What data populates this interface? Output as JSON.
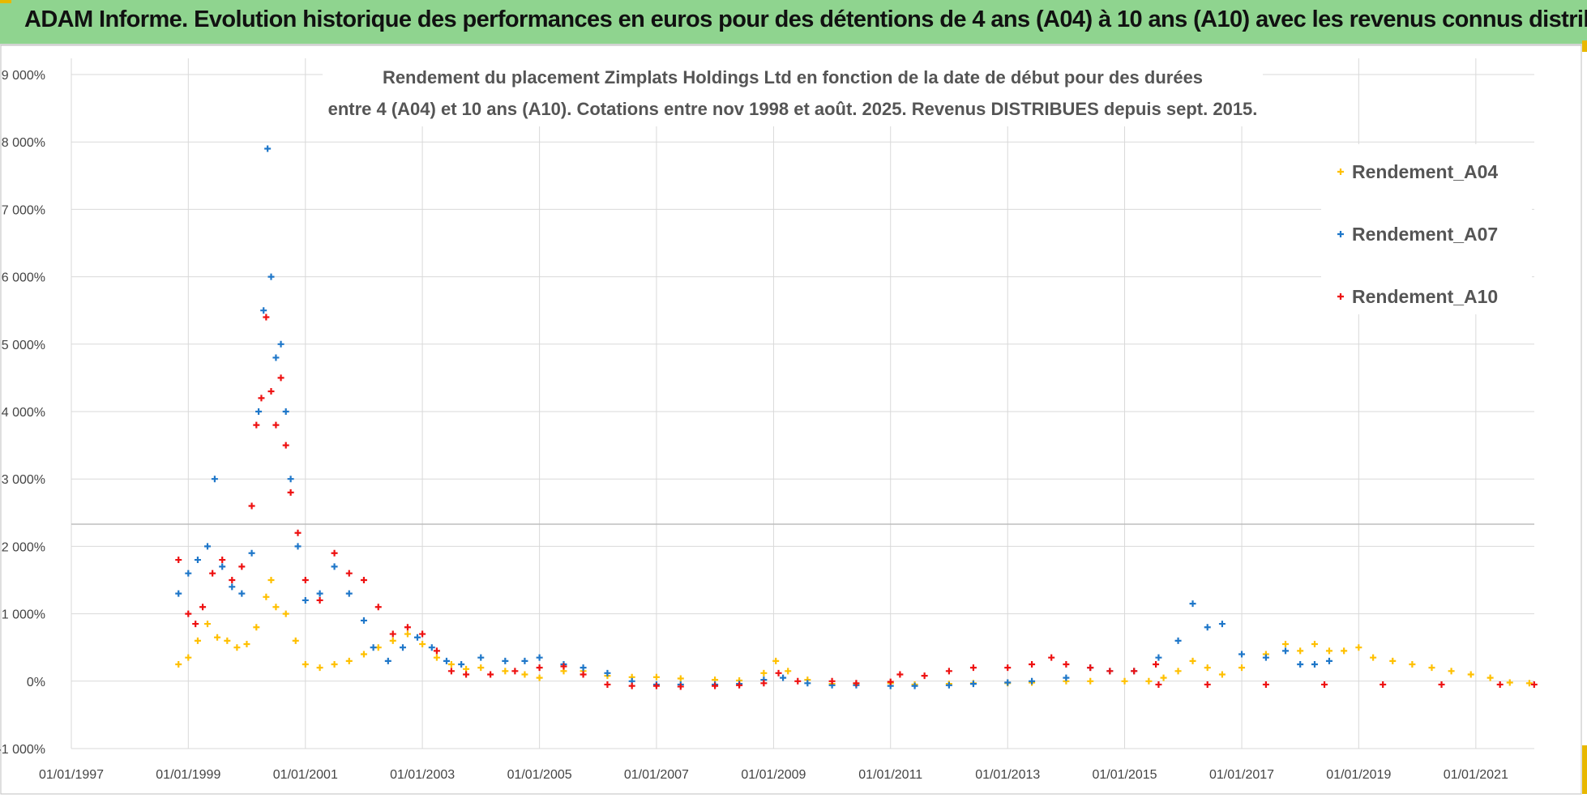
{
  "banner": {
    "title": "ADAM Informe. Evolution historique des performances en euros pour des détentions de 4 ans (A04) à 10 ans (A10) avec les revenus connus distribués"
  },
  "colors": {
    "banner_bg": "#8fd48f",
    "A04": "#ffc000",
    "A07": "#1f77c9",
    "A10": "#ee1111",
    "grid": "#d9d9d9",
    "accent_corner": "#e8b800"
  },
  "chart_data": {
    "type": "scatter",
    "title_line1": "Rendement du placement Zimplats Holdings Ltd en fonction de la date de début pour des durées",
    "title_line2": "entre 4 (A04) et 10 ans (A10).  Cotations entre nov 1998 et août. 2025. Revenus DISTRIBUES depuis sept. 2015.",
    "ylim": [
      -1000,
      9000
    ],
    "yticks": [
      -1000,
      0,
      1000,
      2000,
      3000,
      4000,
      5000,
      6000,
      7000,
      8000,
      9000
    ],
    "ytick_labels": [
      "-1 000%",
      "0%",
      "1 000%",
      "2 000%",
      "3 000%",
      "4 000%",
      "5 000%",
      "6 000%",
      "7 000%",
      "8 000%",
      "9 000%"
    ],
    "xlim": [
      "1997-01-01",
      "2022-01-01"
    ],
    "xtick_labels": [
      "01/01/1997",
      "01/01/1999",
      "01/01/2001",
      "01/01/2003",
      "01/01/2005",
      "01/01/2007",
      "01/01/2009",
      "01/01/2011",
      "01/01/2013",
      "01/01/2015",
      "01/01/2017",
      "01/01/2019",
      "01/01/2021"
    ],
    "xticks": [
      "1997-01-01",
      "1999-01-01",
      "2001-01-01",
      "2003-01-01",
      "2005-01-01",
      "2007-01-01",
      "2009-01-01",
      "2011-01-01",
      "2013-01-01",
      "2015-01-01",
      "2017-01-01",
      "2019-01-01",
      "2021-01-01"
    ],
    "grid": true,
    "legend_position": "top-right",
    "series": [
      {
        "name": "Rendement_A04",
        "color": "#ffc000",
        "points": [
          [
            "1998-11-01",
            250
          ],
          [
            "1999-01-01",
            350
          ],
          [
            "1999-03-01",
            600
          ],
          [
            "1999-05-01",
            850
          ],
          [
            "1999-07-01",
            650
          ],
          [
            "1999-09-01",
            600
          ],
          [
            "1999-11-01",
            500
          ],
          [
            "2000-01-01",
            550
          ],
          [
            "2000-03-01",
            800
          ],
          [
            "2000-05-01",
            1250
          ],
          [
            "2000-06-01",
            1500
          ],
          [
            "2000-07-01",
            1100
          ],
          [
            "2000-09-01",
            1000
          ],
          [
            "2000-11-01",
            600
          ],
          [
            "2001-01-01",
            250
          ],
          [
            "2001-04-01",
            200
          ],
          [
            "2001-07-01",
            250
          ],
          [
            "2001-10-01",
            300
          ],
          [
            "2002-01-01",
            400
          ],
          [
            "2002-04-01",
            500
          ],
          [
            "2002-07-01",
            600
          ],
          [
            "2002-10-01",
            700
          ],
          [
            "2003-01-01",
            550
          ],
          [
            "2003-04-01",
            350
          ],
          [
            "2003-07-01",
            250
          ],
          [
            "2003-10-01",
            180
          ],
          [
            "2004-01-01",
            200
          ],
          [
            "2004-06-01",
            150
          ],
          [
            "2004-10-01",
            100
          ],
          [
            "2005-01-01",
            50
          ],
          [
            "2005-06-01",
            150
          ],
          [
            "2005-10-01",
            150
          ],
          [
            "2006-03-01",
            80
          ],
          [
            "2006-08-01",
            60
          ],
          [
            "2007-01-01",
            60
          ],
          [
            "2007-06-01",
            40
          ],
          [
            "2008-01-01",
            20
          ],
          [
            "2008-06-01",
            10
          ],
          [
            "2008-11-01",
            120
          ],
          [
            "2009-01-15",
            300
          ],
          [
            "2009-04-01",
            150
          ],
          [
            "2009-08-01",
            20
          ],
          [
            "2010-01-01",
            -40
          ],
          [
            "2010-06-01",
            -40
          ],
          [
            "2011-01-01",
            -30
          ],
          [
            "2011-06-01",
            -50
          ],
          [
            "2012-01-01",
            -40
          ],
          [
            "2012-06-01",
            -30
          ],
          [
            "2013-01-01",
            -30
          ],
          [
            "2013-06-01",
            -20
          ],
          [
            "2014-01-01",
            0
          ],
          [
            "2014-06-01",
            0
          ],
          [
            "2015-01-01",
            0
          ],
          [
            "2015-06-01",
            0
          ],
          [
            "2015-09-01",
            50
          ],
          [
            "2015-12-01",
            150
          ],
          [
            "2016-03-01",
            300
          ],
          [
            "2016-06-01",
            200
          ],
          [
            "2016-09-01",
            100
          ],
          [
            "2017-01-01",
            200
          ],
          [
            "2017-06-01",
            400
          ],
          [
            "2017-10-01",
            550
          ],
          [
            "2018-01-01",
            450
          ],
          [
            "2018-04-01",
            550
          ],
          [
            "2018-07-01",
            450
          ],
          [
            "2018-10-01",
            450
          ],
          [
            "2019-01-01",
            500
          ],
          [
            "2019-04-01",
            350
          ],
          [
            "2019-08-01",
            300
          ],
          [
            "2019-12-01",
            250
          ],
          [
            "2020-04-01",
            200
          ],
          [
            "2020-08-01",
            150
          ],
          [
            "2020-12-01",
            100
          ],
          [
            "2021-04-01",
            50
          ],
          [
            "2021-08-01",
            -20
          ],
          [
            "2021-12-01",
            -30
          ]
        ]
      },
      {
        "name": "Rendement_A07",
        "color": "#1f77c9",
        "points": [
          [
            "1998-11-01",
            1300
          ],
          [
            "1999-01-01",
            1600
          ],
          [
            "1999-03-01",
            1800
          ],
          [
            "1999-05-01",
            2000
          ],
          [
            "1999-06-15",
            3000
          ],
          [
            "1999-08-01",
            1700
          ],
          [
            "1999-10-01",
            1400
          ],
          [
            "1999-12-01",
            1300
          ],
          [
            "2000-02-01",
            1900
          ],
          [
            "2000-03-15",
            4000
          ],
          [
            "2000-04-15",
            5500
          ],
          [
            "2000-05-10",
            7900
          ],
          [
            "2000-06-01",
            6000
          ],
          [
            "2000-07-01",
            4800
          ],
          [
            "2000-08-01",
            5000
          ],
          [
            "2000-09-01",
            4000
          ],
          [
            "2000-10-01",
            3000
          ],
          [
            "2000-11-15",
            2000
          ],
          [
            "2001-01-01",
            1200
          ],
          [
            "2001-04-01",
            1300
          ],
          [
            "2001-07-01",
            1700
          ],
          [
            "2001-10-01",
            1300
          ],
          [
            "2002-01-01",
            900
          ],
          [
            "2002-03-01",
            500
          ],
          [
            "2002-06-01",
            300
          ],
          [
            "2002-09-01",
            500
          ],
          [
            "2002-12-01",
            650
          ],
          [
            "2003-03-01",
            500
          ],
          [
            "2003-06-01",
            300
          ],
          [
            "2003-09-01",
            250
          ],
          [
            "2004-01-01",
            350
          ],
          [
            "2004-06-01",
            300
          ],
          [
            "2004-10-01",
            300
          ],
          [
            "2005-01-01",
            350
          ],
          [
            "2005-06-01",
            250
          ],
          [
            "2005-10-01",
            200
          ],
          [
            "2006-03-01",
            120
          ],
          [
            "2006-08-01",
            0
          ],
          [
            "2007-01-01",
            -50
          ],
          [
            "2007-06-01",
            -50
          ],
          [
            "2008-01-01",
            -50
          ],
          [
            "2008-06-01",
            -40
          ],
          [
            "2008-11-01",
            20
          ],
          [
            "2009-03-01",
            50
          ],
          [
            "2009-08-01",
            -30
          ],
          [
            "2010-01-01",
            -60
          ],
          [
            "2010-06-01",
            -60
          ],
          [
            "2011-01-01",
            -70
          ],
          [
            "2011-06-01",
            -70
          ],
          [
            "2012-01-01",
            -60
          ],
          [
            "2012-06-01",
            -40
          ],
          [
            "2013-01-01",
            -20
          ],
          [
            "2013-06-01",
            0
          ],
          [
            "2014-01-01",
            50
          ],
          [
            "2014-06-01",
            200
          ],
          [
            "2014-10-01",
            150
          ],
          [
            "2015-03-01",
            150
          ],
          [
            "2015-08-01",
            350
          ],
          [
            "2015-12-01",
            600
          ],
          [
            "2016-03-01",
            1150
          ],
          [
            "2016-06-01",
            800
          ],
          [
            "2016-09-01",
            850
          ],
          [
            "2017-01-01",
            400
          ],
          [
            "2017-06-01",
            350
          ],
          [
            "2017-10-01",
            450
          ],
          [
            "2018-01-01",
            250
          ],
          [
            "2018-04-01",
            250
          ],
          [
            "2018-07-01",
            300
          ]
        ]
      },
      {
        "name": "Rendement_A10",
        "color": "#ee1111",
        "points": [
          [
            "1998-11-01",
            1800
          ],
          [
            "1999-01-01",
            1000
          ],
          [
            "1999-02-15",
            850
          ],
          [
            "1999-04-01",
            1100
          ],
          [
            "1999-06-01",
            1600
          ],
          [
            "1999-08-01",
            1800
          ],
          [
            "1999-10-01",
            1500
          ],
          [
            "1999-12-01",
            1700
          ],
          [
            "2000-02-01",
            2600
          ],
          [
            "2000-03-01",
            3800
          ],
          [
            "2000-04-01",
            4200
          ],
          [
            "2000-05-01",
            5400
          ],
          [
            "2000-06-01",
            4300
          ],
          [
            "2000-07-01",
            3800
          ],
          [
            "2000-08-01",
            4500
          ],
          [
            "2000-09-01",
            3500
          ],
          [
            "2000-10-01",
            2800
          ],
          [
            "2000-11-15",
            2200
          ],
          [
            "2001-01-01",
            1500
          ],
          [
            "2001-04-01",
            1200
          ],
          [
            "2001-07-01",
            1900
          ],
          [
            "2001-10-01",
            1600
          ],
          [
            "2002-01-01",
            1500
          ],
          [
            "2002-04-01",
            1100
          ],
          [
            "2002-07-01",
            700
          ],
          [
            "2002-10-01",
            800
          ],
          [
            "2003-01-01",
            700
          ],
          [
            "2003-04-01",
            450
          ],
          [
            "2003-07-01",
            150
          ],
          [
            "2003-10-01",
            100
          ],
          [
            "2004-03-01",
            100
          ],
          [
            "2004-08-01",
            150
          ],
          [
            "2005-01-01",
            200
          ],
          [
            "2005-06-01",
            220
          ],
          [
            "2005-10-01",
            100
          ],
          [
            "2006-03-01",
            -50
          ],
          [
            "2006-08-01",
            -70
          ],
          [
            "2007-01-01",
            -70
          ],
          [
            "2007-06-01",
            -80
          ],
          [
            "2008-01-01",
            -70
          ],
          [
            "2008-06-01",
            -60
          ],
          [
            "2008-11-01",
            -30
          ],
          [
            "2009-02-01",
            120
          ],
          [
            "2009-06-01",
            0
          ],
          [
            "2010-01-01",
            0
          ],
          [
            "2010-06-01",
            -30
          ],
          [
            "2011-01-01",
            -10
          ],
          [
            "2011-03-01",
            100
          ],
          [
            "2011-08-01",
            80
          ],
          [
            "2012-01-01",
            150
          ],
          [
            "2012-06-01",
            200
          ],
          [
            "2013-01-01",
            200
          ],
          [
            "2013-06-01",
            250
          ],
          [
            "2013-10-01",
            350
          ],
          [
            "2014-01-01",
            250
          ],
          [
            "2014-06-01",
            200
          ],
          [
            "2014-10-01",
            150
          ],
          [
            "2015-03-01",
            150
          ],
          [
            "2015-07-15",
            250
          ],
          [
            "2015-08-01",
            -50
          ],
          [
            "2016-06-01",
            -50
          ],
          [
            "2017-06-01",
            -50
          ],
          [
            "2018-06-01",
            -50
          ],
          [
            "2019-06-01",
            -50
          ],
          [
            "2020-06-01",
            -50
          ],
          [
            "2021-06-01",
            -50
          ],
          [
            "2021-12-31",
            -50
          ]
        ]
      }
    ]
  }
}
